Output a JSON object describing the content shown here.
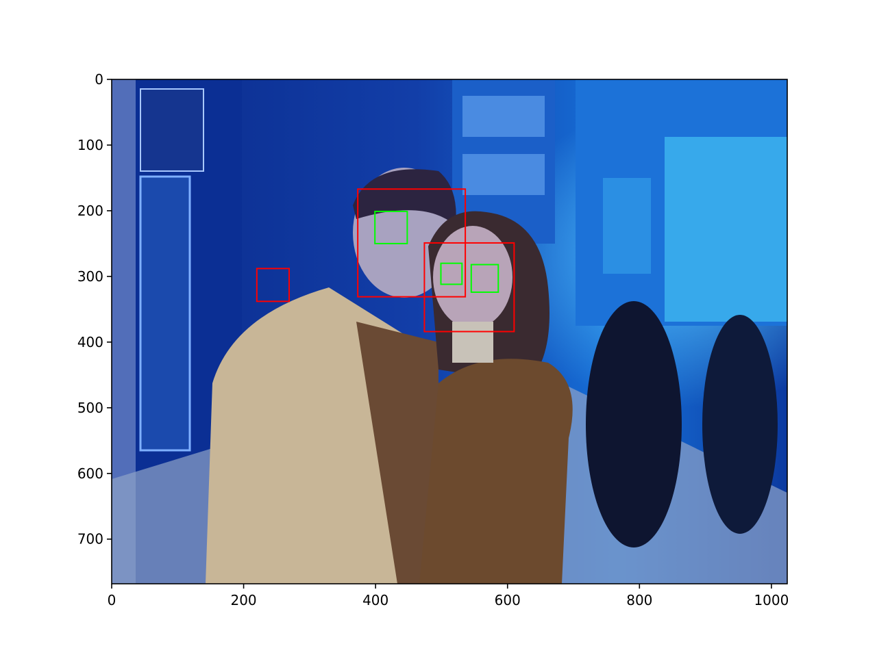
{
  "figure": {
    "x_ticks": [
      "0",
      "200",
      "400",
      "600",
      "800",
      "1000"
    ],
    "y_ticks": [
      "0",
      "100",
      "200",
      "300",
      "400",
      "500",
      "600",
      "700"
    ],
    "colors": {
      "face_box": "#ff0000",
      "eye_box": "#00ff00",
      "axis": "#000000"
    }
  },
  "chart_data": {
    "type": "scatter",
    "image_extent": {
      "x": [
        0,
        1024
      ],
      "y": [
        768,
        0
      ]
    },
    "x_ticks": [
      0,
      200,
      400,
      600,
      800,
      1000
    ],
    "y_ticks": [
      0,
      100,
      200,
      300,
      400,
      500,
      600,
      700
    ],
    "face_boxes": [
      {
        "x": 373,
        "y": 167,
        "w": 163,
        "h": 164
      },
      {
        "x": 474,
        "y": 249,
        "w": 136,
        "h": 135
      },
      {
        "x": 220,
        "y": 288,
        "w": 49,
        "h": 50
      }
    ],
    "eye_boxes": [
      {
        "x": 399,
        "y": 201,
        "w": 49,
        "h": 49
      },
      {
        "x": 499,
        "y": 280,
        "w": 32,
        "h": 32
      },
      {
        "x": 545,
        "y": 282,
        "w": 41,
        "h": 42
      }
    ]
  }
}
